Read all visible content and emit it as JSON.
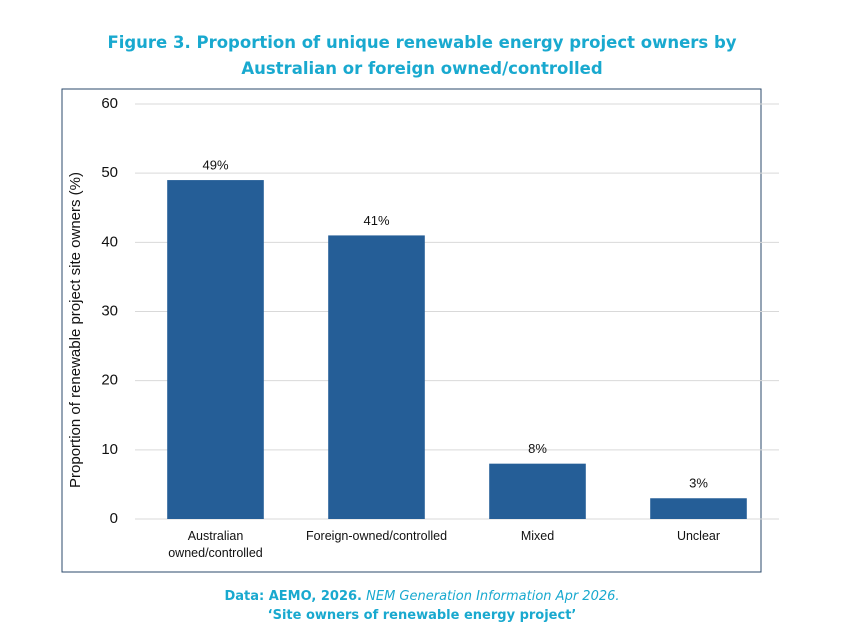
{
  "chart_data": {
    "type": "bar",
    "title": "Figure 3. Proportion of unique renewable energy project owners by Australian or foreign owned/controlled",
    "y_label": "Proportion of renewable project site owners (%)",
    "categories": [
      "Australian\nowned/controlled",
      "Foreign-owned/controlled",
      "Mixed",
      "Unclear"
    ],
    "values": [
      49,
      41,
      8,
      3
    ],
    "value_labels": [
      "49%",
      "41%",
      "8%",
      "3%"
    ],
    "color": "#255e97",
    "ylim": [
      0,
      60
    ],
    "yticks": [
      0,
      10,
      20,
      30,
      40,
      50,
      60
    ],
    "grid": true,
    "source": {
      "label": "Data: AEMO, 2026.",
      "title": "NEM Generation Information Apr 2026.",
      "subtitle": "‘Site owners of renewable energy project’"
    }
  }
}
